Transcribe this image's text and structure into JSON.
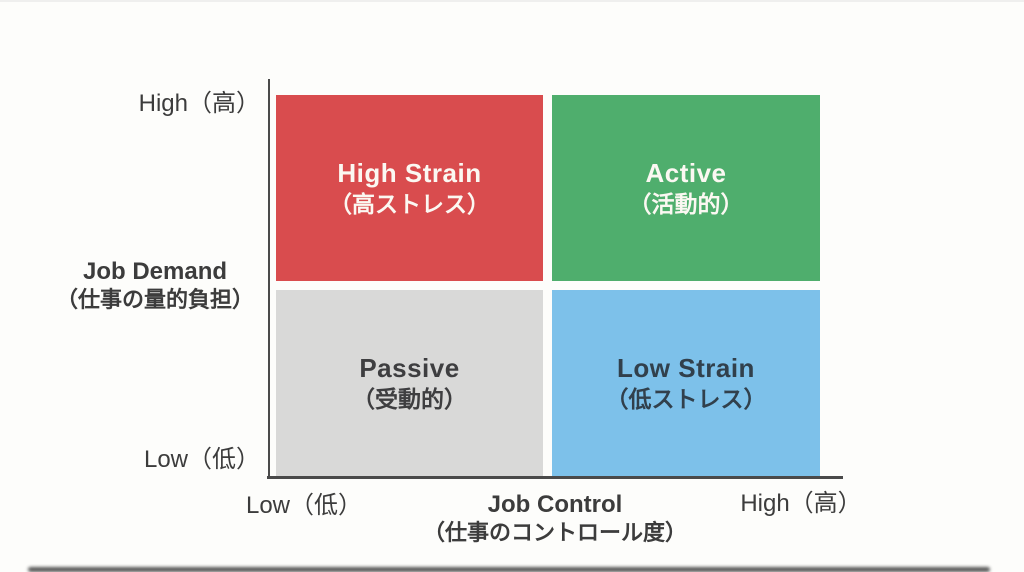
{
  "quadrant_chart": {
    "y_axis": {
      "title_line1": "Job Demand",
      "title_line2": "（仕事の量的負担）",
      "top_tick": "High（高）",
      "bottom_tick": "Low（低）"
    },
    "x_axis": {
      "title_line1": "Job Control",
      "title_line2": "（仕事のコントロール度）",
      "left_tick": "Low（低）",
      "right_tick": "High（高）"
    },
    "quadrants": {
      "top_left": {
        "label": "High Strain",
        "sub": "（高ストレス）",
        "color": "#d94c4e",
        "text_color": "#fbf8f2"
      },
      "top_right": {
        "label": "Active",
        "sub": "（活動的）",
        "color": "#4fae6d",
        "text_color": "#fbf8f2"
      },
      "bottom_left": {
        "label": "Passive",
        "sub": "（受動的）",
        "color": "#d9d9d8",
        "text_color": "#3e3e40"
      },
      "bottom_right": {
        "label": "Low Strain",
        "sub": "（低ストレス）",
        "color": "#7dc1ea",
        "text_color": "#31404c"
      }
    },
    "colors": {
      "axis": "#4a4a4a",
      "label_text": "#3c3c3c",
      "background": "#fdfdfb"
    }
  }
}
